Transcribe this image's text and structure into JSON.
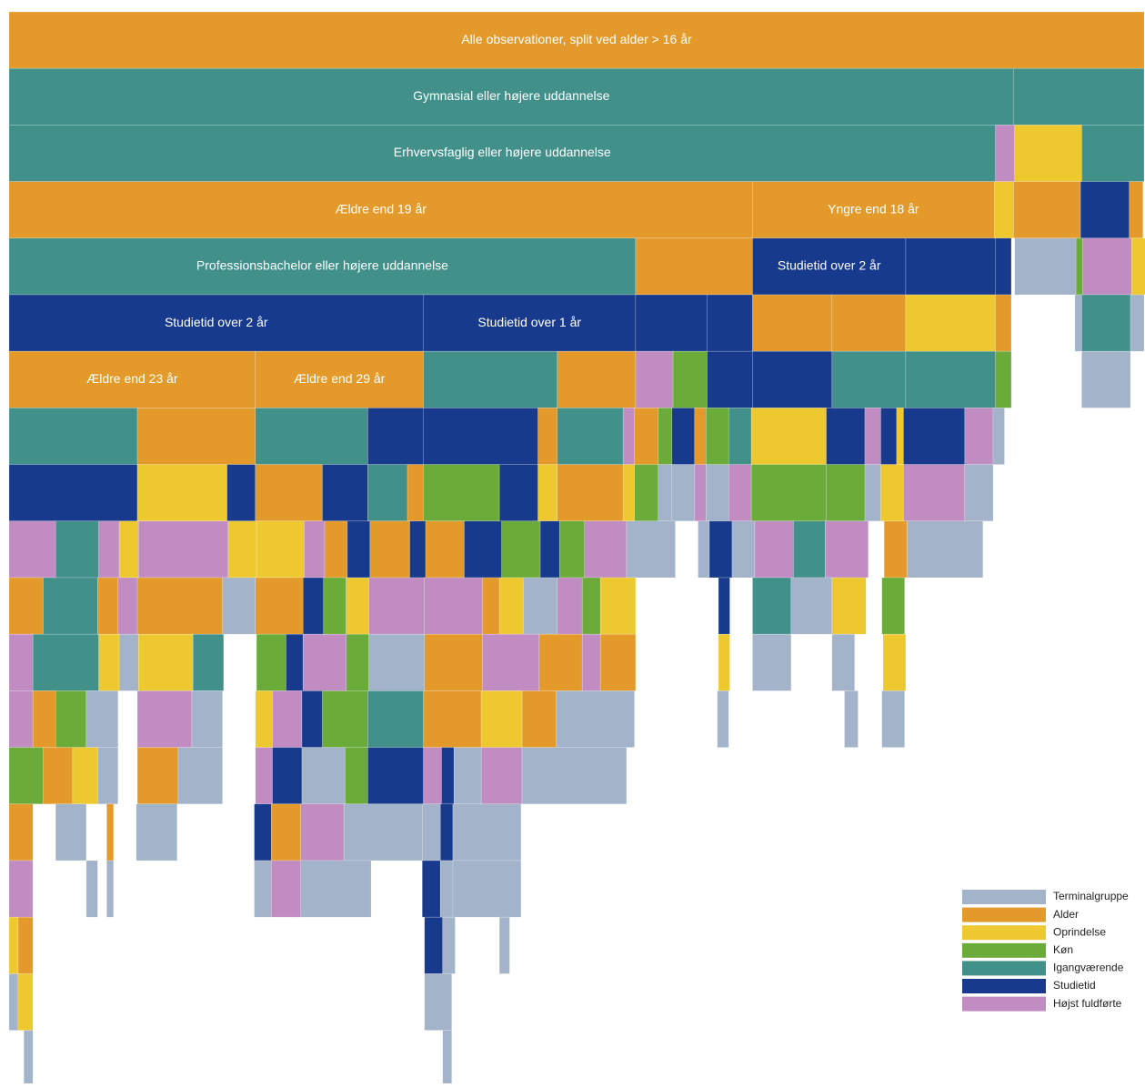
{
  "chart_data": {
    "type": "icicle",
    "legend": [
      {
        "name": "Terminalgruppe",
        "color": "#a3b3c9"
      },
      {
        "name": "Alder",
        "color": "#e39a2a"
      },
      {
        "name": "Oprindelse",
        "color": "#eec82f"
      },
      {
        "name": "Køn",
        "color": "#6aab3a"
      },
      {
        "name": "Igangværende",
        "color": "#42908a"
      },
      {
        "name": "Studietid",
        "color": "#173a8c"
      },
      {
        "name": "Højst fuldførte",
        "color": "#c08cc2"
      }
    ],
    "legend_position": "lower right",
    "levels": [
      [
        [
          1,
          100,
          "Alle observationer, split ved alder > 16 år"
        ]
      ],
      [
        [
          4,
          88.5,
          "Gymnasial eller højere uddannelse"
        ],
        [
          4,
          11.5
        ]
      ],
      [
        [
          4,
          86.9,
          "Erhvervsfaglig eller højere uddannelse"
        ],
        [
          6,
          1.7
        ],
        [
          2,
          5.9
        ],
        [
          4,
          5.5
        ]
      ],
      [
        [
          1,
          65.5,
          "Ældre end 19 år"
        ],
        [
          1,
          21.3,
          "Yngre end 18 år"
        ],
        [
          2,
          1.7
        ],
        [
          1,
          5.9
        ],
        [
          5,
          4.3
        ],
        [
          1,
          1.2
        ]
      ],
      [
        [
          4,
          55.2,
          "Professionsbachelor eller højere uddannelse"
        ],
        [
          1,
          10.3
        ],
        [
          5,
          13.5,
          "Studietid over 2 år"
        ],
        [
          5,
          7.9
        ],
        [
          5,
          1.4
        ],
        [
          null,
          0.3
        ],
        [
          0,
          5.4
        ],
        [
          3,
          0.6
        ],
        [
          6,
          4.3
        ],
        [
          2,
          1.2
        ]
      ],
      [
        [
          5,
          36.5,
          "Studietid over 2 år"
        ],
        [
          5,
          18.7,
          "Studietid over 1 år"
        ],
        [
          5,
          6.3
        ],
        [
          5,
          4.0
        ],
        [
          1,
          7.0
        ],
        [
          1,
          6.5
        ],
        [
          2,
          7.9
        ],
        [
          1,
          1.4
        ],
        [
          null,
          5.6
        ],
        [
          0,
          0.6
        ],
        [
          4,
          4.3
        ],
        [
          0,
          1.2
        ]
      ],
      [
        [
          1,
          21.7,
          "Ældre end 23 år"
        ],
        [
          1,
          14.8,
          "Ældre end 29 år"
        ],
        [
          4,
          11.8
        ],
        [
          1,
          6.9
        ],
        [
          6,
          3.3
        ],
        [
          3,
          3.0
        ],
        [
          5,
          4.0
        ],
        [
          5,
          7.0
        ],
        [
          4,
          6.5
        ],
        [
          4,
          7.9
        ],
        [
          3,
          1.4
        ],
        [
          null,
          6.2
        ],
        [
          0,
          4.3
        ]
      ],
      [
        [
          4,
          11.3
        ],
        [
          1,
          10.4
        ],
        [
          4,
          9.9
        ],
        [
          5,
          4.9
        ],
        [
          5,
          10.1
        ],
        [
          1,
          1.7
        ],
        [
          4,
          5.8
        ],
        [
          6,
          1.0
        ],
        [
          1,
          2.1
        ],
        [
          3,
          1.2
        ],
        [
          5,
          2.0
        ],
        [
          1,
          1.0
        ],
        [
          3,
          2.0
        ],
        [
          4,
          2.0
        ],
        [
          2,
          6.6
        ],
        [
          5,
          3.4
        ],
        [
          6,
          1.4
        ],
        [
          5,
          1.4
        ],
        [
          2,
          0.6
        ],
        [
          5,
          5.4
        ],
        [
          6,
          2.5
        ],
        [
          0,
          1.0
        ]
      ],
      [
        [
          5,
          11.3
        ],
        [
          2,
          7.9
        ],
        [
          5,
          2.5
        ],
        [
          1,
          5.9
        ],
        [
          5,
          4.0
        ],
        [
          4,
          3.5
        ],
        [
          1,
          1.4
        ],
        [
          3,
          6.7
        ],
        [
          5,
          3.4
        ],
        [
          2,
          1.7
        ],
        [
          1,
          5.8
        ],
        [
          2,
          1.0
        ],
        [
          3,
          2.1
        ],
        [
          0,
          1.2
        ],
        [
          0,
          2.0
        ],
        [
          6,
          1.0
        ],
        [
          0,
          2.0
        ],
        [
          6,
          2.0
        ],
        [
          3,
          6.6
        ],
        [
          3,
          3.4
        ],
        [
          0,
          1.4
        ],
        [
          2,
          2.0
        ],
        [
          6,
          5.4
        ],
        [
          0,
          2.5
        ]
      ],
      [
        [
          6,
          4.1
        ],
        [
          4,
          3.8
        ],
        [
          6,
          1.8
        ],
        [
          2,
          1.7
        ],
        [
          6,
          7.9
        ],
        [
          2,
          2.5
        ],
        [
          2,
          4.2
        ],
        [
          6,
          1.8
        ],
        [
          1,
          2.0
        ],
        [
          5,
          2.0
        ],
        [
          1,
          3.5
        ],
        [
          5,
          1.4
        ],
        [
          1,
          3.4
        ],
        [
          5,
          3.3
        ],
        [
          3,
          3.4
        ],
        [
          5,
          1.7
        ],
        [
          3,
          2.2
        ],
        [
          6,
          3.7
        ],
        [
          0,
          4.3
        ],
        [
          null,
          2.0
        ],
        [
          0,
          1.0
        ],
        [
          5,
          2.0
        ],
        [
          0,
          2.0
        ],
        [
          6,
          3.4
        ],
        [
          4,
          2.8
        ],
        [
          6,
          3.8
        ],
        [
          null,
          1.4
        ],
        [
          1,
          2.0
        ],
        [
          0,
          6.7
        ]
      ],
      [
        [
          1,
          3.0
        ],
        [
          4,
          4.8
        ],
        [
          1,
          1.8
        ],
        [
          6,
          1.7
        ],
        [
          1,
          7.5
        ],
        [
          0,
          2.9
        ],
        [
          1,
          4.2
        ],
        [
          5,
          1.8
        ],
        [
          3,
          2.0
        ],
        [
          2,
          2.0
        ],
        [
          6,
          4.9
        ],
        [
          6,
          5.1
        ],
        [
          1,
          1.5
        ],
        [
          2,
          2.1
        ],
        [
          0,
          3.0
        ],
        [
          6,
          2.2
        ],
        [
          3,
          1.6
        ],
        [
          2,
          3.1
        ],
        [
          null,
          7.3
        ],
        [
          5,
          1.0
        ],
        [
          null,
          2.0
        ],
        [
          4,
          3.4
        ],
        [
          0,
          3.6
        ],
        [
          2,
          3.0
        ],
        [
          null,
          1.4
        ],
        [
          3,
          2.0
        ]
      ],
      [
        [
          6,
          2.1
        ],
        [
          4,
          5.8
        ],
        [
          2,
          1.8
        ],
        [
          0,
          1.7
        ],
        [
          2,
          4.8
        ],
        [
          4,
          2.7
        ],
        [
          null,
          2.9
        ],
        [
          3,
          2.6
        ],
        [
          5,
          1.5
        ],
        [
          6,
          3.8
        ],
        [
          3,
          2.0
        ],
        [
          0,
          4.9
        ],
        [
          1,
          5.1
        ],
        [
          6,
          5.0
        ],
        [
          1,
          3.8
        ],
        [
          6,
          1.6
        ],
        [
          1,
          3.1
        ],
        [
          null,
          7.3
        ],
        [
          2,
          1.0
        ],
        [
          null,
          2.0
        ],
        [
          0,
          3.4
        ],
        [
          null,
          3.6
        ],
        [
          0,
          2.0
        ],
        [
          null,
          2.5
        ],
        [
          2,
          2.0
        ]
      ],
      [
        [
          6,
          2.1
        ],
        [
          1,
          2.0
        ],
        [
          3,
          2.7
        ],
        [
          0,
          2.8
        ],
        [
          null,
          1.7
        ],
        [
          6,
          4.8
        ],
        [
          0,
          2.7
        ],
        [
          null,
          2.9
        ],
        [
          2,
          1.5
        ],
        [
          6,
          2.6
        ],
        [
          5,
          1.8
        ],
        [
          3,
          4.0
        ],
        [
          4,
          4.9
        ],
        [
          1,
          5.1
        ],
        [
          2,
          3.6
        ],
        [
          1,
          3.0
        ],
        [
          0,
          6.9
        ],
        [
          null,
          7.3
        ],
        [
          0,
          1.0
        ],
        [
          null,
          10.2
        ],
        [
          0,
          1.2
        ],
        [
          null,
          2.1
        ],
        [
          0,
          2.0
        ]
      ],
      [
        [
          3,
          3.0
        ],
        [
          1,
          2.6
        ],
        [
          2,
          2.2
        ],
        [
          0,
          1.8
        ],
        [
          null,
          1.7
        ],
        [
          1,
          3.6
        ],
        [
          0,
          3.9
        ],
        [
          null,
          2.9
        ],
        [
          6,
          1.5
        ],
        [
          5,
          2.6
        ],
        [
          0,
          3.8
        ],
        [
          3,
          2.0
        ],
        [
          5,
          4.9
        ],
        [
          6,
          1.6
        ],
        [
          5,
          1.1
        ],
        [
          0,
          2.4
        ],
        [
          6,
          3.6
        ],
        [
          0,
          9.2
        ]
      ],
      [
        [
          1,
          2.1
        ],
        [
          null,
          2.0
        ],
        [
          0,
          2.7
        ],
        [
          null,
          1.8
        ],
        [
          1,
          0.6
        ],
        [
          null,
          2.0
        ],
        [
          0,
          3.6
        ],
        [
          null,
          6.8
        ],
        [
          5,
          1.5
        ],
        [
          1,
          2.6
        ],
        [
          6,
          3.8
        ],
        [
          0,
          6.9
        ],
        [
          0,
          1.6
        ],
        [
          5,
          1.1
        ],
        [
          0,
          6.0
        ]
      ],
      [
        [
          6,
          2.1
        ],
        [
          null,
          4.7
        ],
        [
          0,
          1.0
        ],
        [
          null,
          0.8
        ],
        [
          0,
          0.6
        ],
        [
          null,
          12.4
        ],
        [
          0,
          1.5
        ],
        [
          6,
          2.6
        ],
        [
          0,
          6.2
        ],
        [
          null,
          4.5
        ],
        [
          5,
          1.6
        ],
        [
          0,
          1.1
        ],
        [
          0,
          6.0
        ]
      ],
      [
        [
          2,
          0.8
        ],
        [
          1,
          1.3
        ],
        [
          null,
          34.5
        ],
        [
          5,
          1.6
        ],
        [
          0,
          1.1
        ],
        [
          null,
          3.9
        ],
        [
          0,
          0.9
        ]
      ],
      [
        [
          0,
          0.8
        ],
        [
          2,
          1.3
        ],
        [
          null,
          34.5
        ],
        [
          0,
          2.4
        ]
      ],
      [
        [
          null,
          1.3
        ],
        [
          0,
          0.8
        ],
        [
          null,
          36.1
        ],
        [
          0,
          0.8
        ]
      ]
    ]
  }
}
